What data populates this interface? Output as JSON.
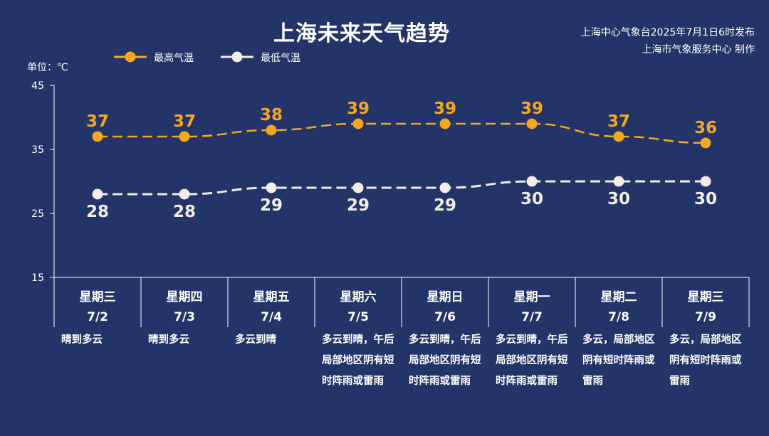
{
  "title": "上海未来天气趋势",
  "source": {
    "line1": "上海中心气象台2025年7月1日6时发布",
    "line2": "上海市气象服务中心 制作"
  },
  "unit_label": "单位：℃",
  "colors": {
    "background": "#223468",
    "high": "#f5a623",
    "low": "#f4ece6",
    "axis": "#ffffff"
  },
  "chart_data": {
    "type": "line",
    "title": "上海未来天气趋势",
    "ylabel": "单位：℃",
    "ylim": [
      15,
      45
    ],
    "yticks": [
      15,
      25,
      35,
      45
    ],
    "grid": false,
    "legend_position": "top-left",
    "categories": [
      "7/2",
      "7/3",
      "7/4",
      "7/5",
      "7/6",
      "7/7",
      "7/8",
      "7/9"
    ],
    "weekdays": [
      "星期三",
      "星期四",
      "星期五",
      "星期六",
      "星期日",
      "星期一",
      "星期二",
      "星期三"
    ],
    "weather": [
      "晴到多云",
      "晴到多云",
      "多云到晴",
      "多云到晴，午后局部地区阴有短时阵雨或雷雨",
      "多云到晴，午后局部地区阴有短时阵雨或雷雨",
      "多云到晴，午后局部地区阴有短时阵雨或雷雨",
      "多云，局部地区阴有短时阵雨或雷雨",
      "多云，局部地区阴有短时阵雨或雷雨"
    ],
    "series": [
      {
        "name": "最高气温",
        "values": [
          37,
          37,
          38,
          39,
          39,
          39,
          37,
          36
        ]
      },
      {
        "name": "最低气温",
        "values": [
          28,
          28,
          29,
          29,
          29,
          30,
          30,
          30
        ]
      }
    ]
  }
}
